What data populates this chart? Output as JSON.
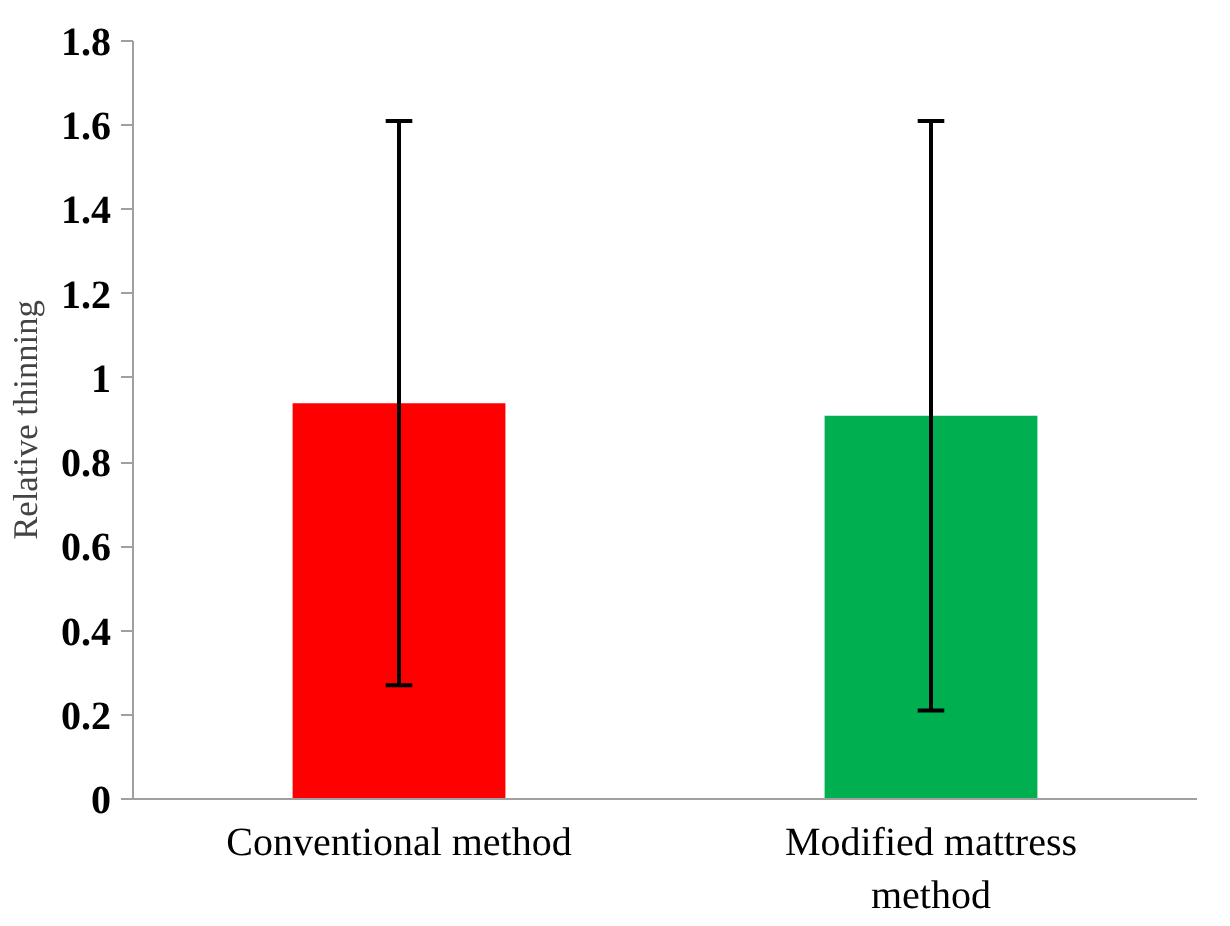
{
  "chart_data": {
    "type": "bar",
    "ylabel": "Relative thinning",
    "categories": [
      "Conventional method",
      "Modified mattress method"
    ],
    "values": [
      0.94,
      0.91
    ],
    "colors": [
      "#ff0000",
      "#00b050"
    ],
    "errors": [
      [
        0.27,
        1.61
      ],
      [
        0.21,
        1.61
      ]
    ],
    "ylim": [
      0,
      1.8
    ],
    "yticks": [
      0,
      0.2,
      0.4,
      0.6,
      0.8,
      1,
      1.2,
      1.4,
      1.6,
      1.8
    ],
    "grid": false
  }
}
